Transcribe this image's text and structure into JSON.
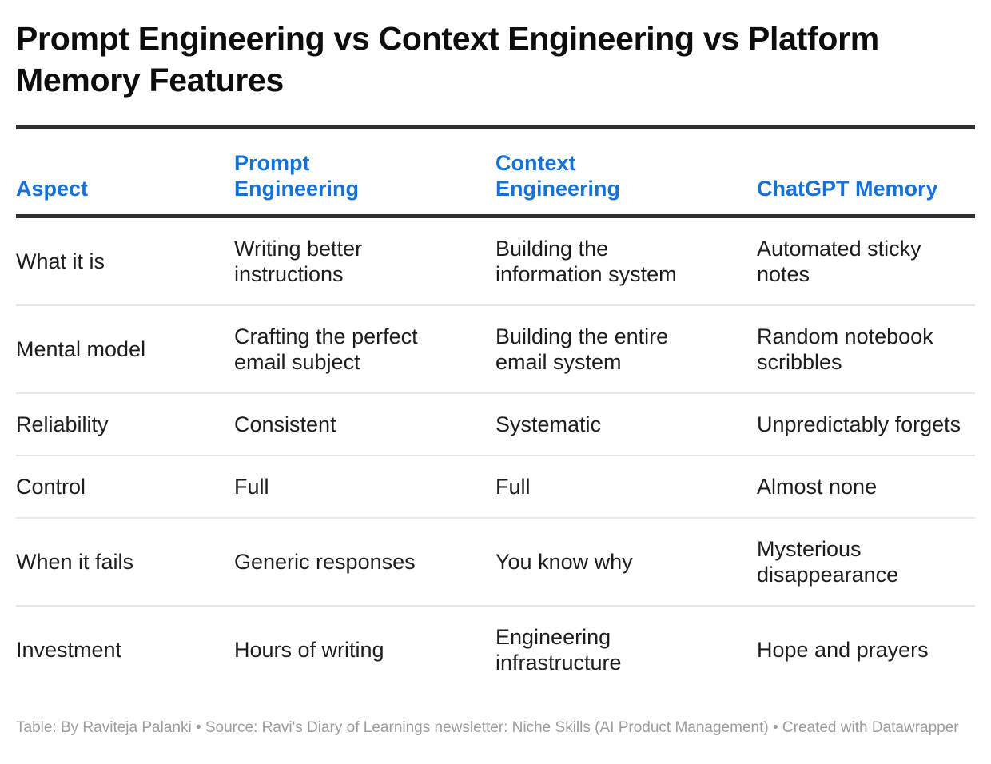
{
  "chart_data": {
    "type": "table",
    "title": "Prompt Engineering vs Context Engineering vs Platform Memory Features",
    "columns": [
      "Aspect",
      "Prompt Engineering",
      "Context Engineering",
      "ChatGPT Memory"
    ],
    "rows": [
      [
        "What it is",
        "Writing better instructions",
        "Building the information system",
        "Automated sticky notes"
      ],
      [
        "Mental model",
        "Crafting the perfect email subject",
        "Building the entire email system",
        "Random notebook scribbles"
      ],
      [
        "Reliability",
        "Consistent",
        "Systematic",
        "Unpredictably forgets"
      ],
      [
        "Control",
        "Full",
        "Full",
        "Almost none"
      ],
      [
        "When it fails",
        "Generic responses",
        "You know why",
        "Mysterious disappearance"
      ],
      [
        "Investment",
        "Hours of writing",
        "Engineering infrastructure",
        "Hope and prayers"
      ]
    ],
    "footer": "Table: By Raviteja Palanki • Source: Ravi's Diary of Learnings newsletter: Niche Skills (AI Product Management) • Created with Datawrapper",
    "legend_position": "none",
    "grid": "horizontal-row-separators"
  },
  "colors": {
    "header_text": "#1571d8",
    "title_text": "#0d0d0d",
    "body_text": "#1d1d1d",
    "rule_dark": "#2f2f2f",
    "row_separator": "#e8e8e8",
    "footer_text": "#9c9c9c",
    "background": "#ffffff"
  }
}
